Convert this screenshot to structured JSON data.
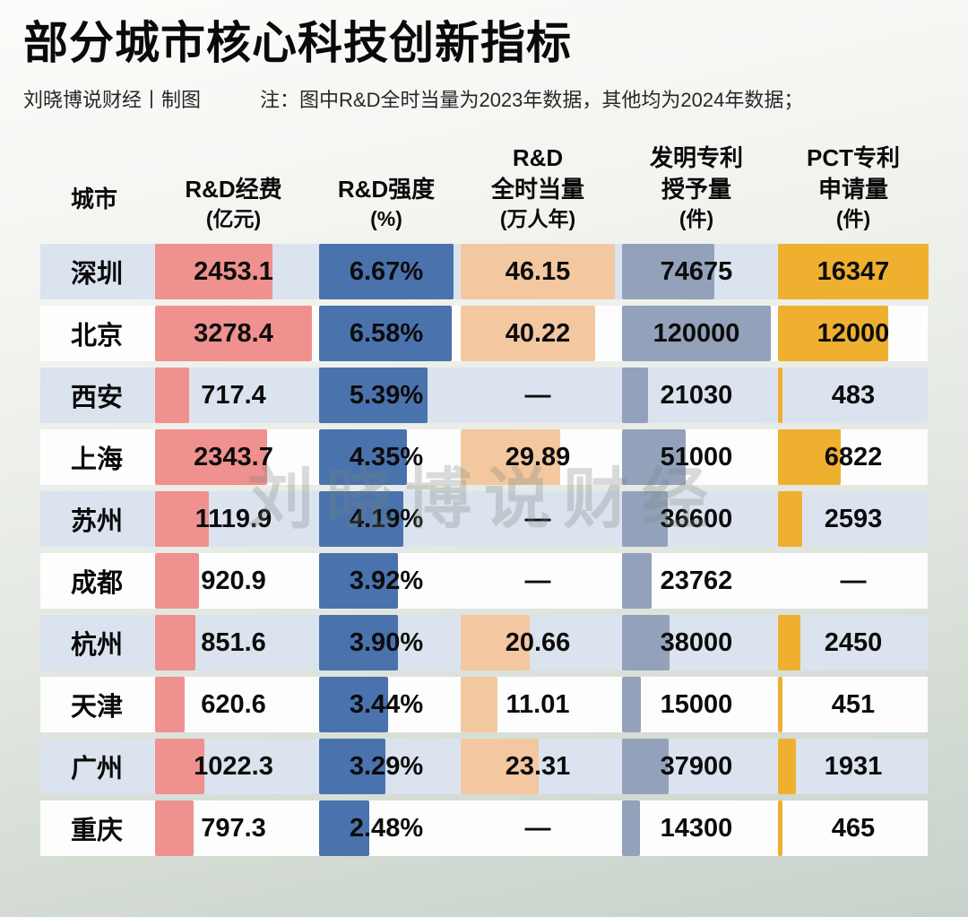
{
  "title": "部分城市核心科技创新指标",
  "credit": "刘晓博说财经丨制图",
  "note": "注：图中R&D全时当量为2023年数据，其他均为2024年数据；",
  "watermark": "刘晓博说财经",
  "colors": {
    "row_stripe": "#dbe3ee",
    "row_plain": "#fdfdfd",
    "title_text": "#0a0a0a"
  },
  "chart_data": {
    "type": "table",
    "title": "部分城市核心科技创新指标",
    "columns": [
      {
        "key": "city",
        "header_lines": [
          "城市"
        ]
      },
      {
        "key": "rd_expenditure",
        "header_lines": [
          "R&D经费",
          "(亿元)"
        ],
        "unit": "亿元"
      },
      {
        "key": "rd_intensity",
        "header_lines": [
          "R&D强度",
          "(%)"
        ],
        "unit": "%"
      },
      {
        "key": "rd_fte",
        "header_lines": [
          "R&D",
          "全时当量",
          "(万人年)"
        ],
        "unit": "万人年"
      },
      {
        "key": "invention_patents",
        "header_lines": [
          "发明专利",
          "授予量",
          "(件)"
        ],
        "unit": "件"
      },
      {
        "key": "pct_applications",
        "header_lines": [
          "PCT专利",
          "申请量",
          "(件)"
        ],
        "unit": "件"
      }
    ],
    "bar_colors": {
      "rd_expenditure": "#ef918e",
      "rd_intensity": "#4a73ae",
      "rd_fte": "#f3c8a0",
      "invention_patents": "#93a2ba",
      "pct_applications": "#efb02f"
    },
    "rows": [
      {
        "city": "深圳",
        "rd_expenditure": "2453.1",
        "rd_intensity": "6.67%",
        "rd_fte": "46.15",
        "invention_patents": "74675",
        "pct_applications": "16347"
      },
      {
        "city": "北京",
        "rd_expenditure": "3278.4",
        "rd_intensity": "6.58%",
        "rd_fte": "40.22",
        "invention_patents": "120000",
        "pct_applications": "12000"
      },
      {
        "city": "西安",
        "rd_expenditure": "717.4",
        "rd_intensity": "5.39%",
        "rd_fte": "—",
        "invention_patents": "21030",
        "pct_applications": "483"
      },
      {
        "city": "上海",
        "rd_expenditure": "2343.7",
        "rd_intensity": "4.35%",
        "rd_fte": "29.89",
        "invention_patents": "51000",
        "pct_applications": "6822"
      },
      {
        "city": "苏州",
        "rd_expenditure": "1119.9",
        "rd_intensity": "4.19%",
        "rd_fte": "—",
        "invention_patents": "36600",
        "pct_applications": "2593"
      },
      {
        "city": "成都",
        "rd_expenditure": "920.9",
        "rd_intensity": "3.92%",
        "rd_fte": "—",
        "invention_patents": "23762",
        "pct_applications": "—"
      },
      {
        "city": "杭州",
        "rd_expenditure": "851.6",
        "rd_intensity": "3.90%",
        "rd_fte": "20.66",
        "invention_patents": "38000",
        "pct_applications": "2450"
      },
      {
        "city": "天津",
        "rd_expenditure": "620.6",
        "rd_intensity": "3.44%",
        "rd_fte": "11.01",
        "invention_patents": "15000",
        "pct_applications": "451"
      },
      {
        "city": "广州",
        "rd_expenditure": "1022.3",
        "rd_intensity": "3.29%",
        "rd_fte": "23.31",
        "invention_patents": "37900",
        "pct_applications": "1931"
      },
      {
        "city": "重庆",
        "rd_expenditure": "797.3",
        "rd_intensity": "2.48%",
        "rd_fte": "—",
        "invention_patents": "14300",
        "pct_applications": "465"
      }
    ]
  }
}
